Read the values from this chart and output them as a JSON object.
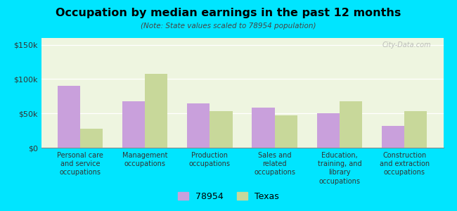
{
  "title": "Occupation by median earnings in the past 12 months",
  "subtitle": "(Note: State values scaled to 78954 population)",
  "categories": [
    "Personal care\nand service\noccupations",
    "Management\noccupations",
    "Production\noccupations",
    "Sales and\nrelated\noccupations",
    "Education,\ntraining, and\nlibrary\noccupations",
    "Construction\nand extraction\noccupations"
  ],
  "values_78954": [
    90000,
    68000,
    65000,
    58000,
    50000,
    32000
  ],
  "values_texas": [
    28000,
    108000,
    53000,
    47000,
    68000,
    53000
  ],
  "color_78954": "#c9a0dc",
  "color_texas": "#c8d89a",
  "background_outer": "#00e5ff",
  "background_plot": "#eef5e0",
  "ylim": [
    0,
    160000
  ],
  "yticks": [
    0,
    50000,
    100000,
    150000
  ],
  "ytick_labels": [
    "$0",
    "$50k",
    "$100k",
    "$150k"
  ],
  "legend_label_1": "78954",
  "legend_label_2": "Texas",
  "watermark": "City-Data.com",
  "bar_width": 0.35
}
